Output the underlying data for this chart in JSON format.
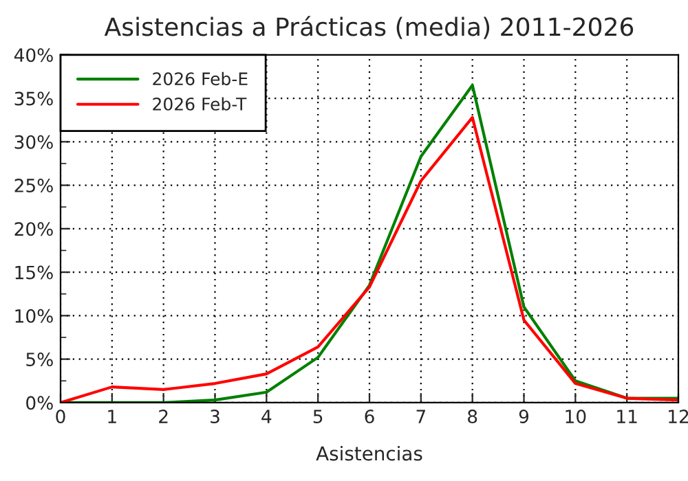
{
  "chart_data": {
    "type": "line",
    "title": "Asistencias a Prácticas (media) 2011-2026",
    "xlabel": "Asistencias",
    "x": [
      0,
      1,
      2,
      3,
      4,
      5,
      6,
      7,
      8,
      9,
      10,
      11,
      12
    ],
    "series": [
      {
        "name": "2026 Feb-E",
        "color": "#008000",
        "values": [
          0,
          0,
          0,
          0.3,
          1.2,
          5.2,
          13.5,
          28.3,
          36.5,
          11,
          2.5,
          0.5,
          0.5
        ]
      },
      {
        "name": "2026 Feb-T",
        "color": "#ff0000",
        "values": [
          0,
          1.8,
          1.5,
          2.2,
          3.3,
          6.4,
          13.3,
          25.5,
          32.8,
          9.5,
          2.2,
          0.5,
          0.3
        ]
      }
    ],
    "xlim": [
      0,
      12
    ],
    "xticks": [
      0,
      1,
      2,
      3,
      4,
      5,
      6,
      7,
      8,
      9,
      10,
      11,
      12
    ],
    "ylim": [
      0,
      40
    ],
    "yticks": [
      {
        "value": 0,
        "label": "0%"
      },
      {
        "value": 2.5,
        "label": null
      },
      {
        "value": 5,
        "label": "5%"
      },
      {
        "value": 7.5,
        "label": null
      },
      {
        "value": 10,
        "label": "10%"
      },
      {
        "value": 12.5,
        "label": null
      },
      {
        "value": 15,
        "label": "15%"
      },
      {
        "value": 17.5,
        "label": null
      },
      {
        "value": 20,
        "label": "20%"
      },
      {
        "value": 22.5,
        "label": null
      },
      {
        "value": 25,
        "label": "25%"
      },
      {
        "value": 27.5,
        "label": null
      },
      {
        "value": 30,
        "label": "30%"
      },
      {
        "value": 32.5,
        "label": null
      },
      {
        "value": 35,
        "label": "35%"
      },
      {
        "value": 37.5,
        "label": null
      },
      {
        "value": 40,
        "label": "40%"
      }
    ],
    "grid": true,
    "legend": "top left",
    "marker": "none",
    "line_style": "solid"
  }
}
